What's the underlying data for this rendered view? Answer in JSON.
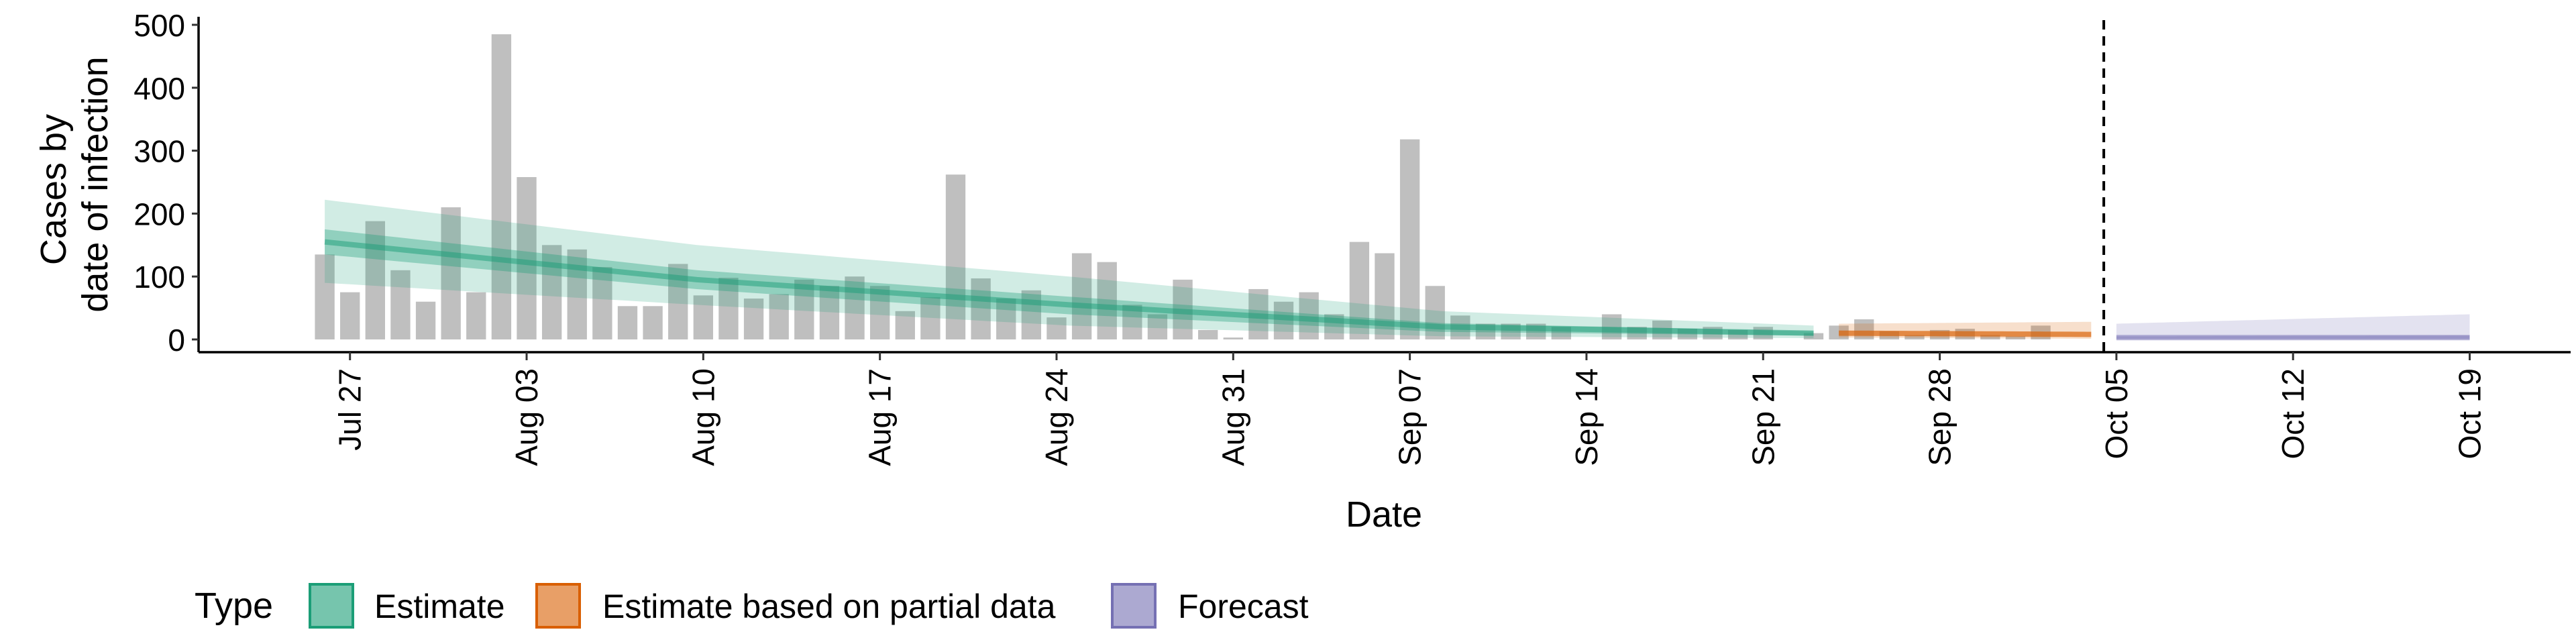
{
  "chart_data": {
    "type": "bar",
    "xlabel": "Date",
    "ylabel_lines": [
      "Cases by",
      "date of infection"
    ],
    "ylim": [
      0,
      500
    ],
    "y_ticks": [
      0,
      100,
      200,
      300,
      400,
      500
    ],
    "x_ticks": [
      {
        "label": "Jul 27",
        "day": 0
      },
      {
        "label": "Aug 03",
        "day": 7
      },
      {
        "label": "Aug 10",
        "day": 14
      },
      {
        "label": "Aug 17",
        "day": 21
      },
      {
        "label": "Aug 24",
        "day": 28
      },
      {
        "label": "Aug 31",
        "day": 35
      },
      {
        "label": "Sep 07",
        "day": 42
      },
      {
        "label": "Sep 14",
        "day": 49
      },
      {
        "label": "Sep 21",
        "day": 56
      },
      {
        "label": "Sep 28",
        "day": 63
      },
      {
        "label": "Oct 05",
        "day": 70
      },
      {
        "label": "Oct 12",
        "day": 77
      },
      {
        "label": "Oct 19",
        "day": 84
      }
    ],
    "x_range_days": [
      -6,
      88
    ],
    "first_bar_date": "Jul 26",
    "reported_cases": [
      135,
      75,
      188,
      110,
      60,
      210,
      75,
      485,
      258,
      150,
      143,
      115,
      53,
      53,
      120,
      70,
      98,
      65,
      72,
      95,
      85,
      100,
      85,
      45,
      67,
      262,
      97,
      65,
      78,
      35,
      137,
      123,
      55,
      40,
      95,
      15,
      3,
      80,
      60,
      75,
      40,
      155,
      137,
      318,
      85,
      38,
      25,
      25,
      25,
      20,
      0,
      40,
      20,
      30,
      17,
      20,
      15,
      20,
      0,
      10,
      22,
      32,
      13,
      7,
      15,
      17,
      7,
      5,
      22
    ],
    "vertical_line_day": 69.5,
    "series": [
      {
        "name": "Estimate",
        "color": "#1b9e77",
        "start_day": -1,
        "end_day": 58,
        "median": [
          155,
          95,
          55,
          20,
          10
        ],
        "inner": [
          [
            135,
            175
          ],
          [
            80,
            110
          ],
          [
            40,
            68
          ],
          [
            12,
            26
          ],
          [
            6,
            13
          ]
        ],
        "outer": [
          [
            90,
            222
          ],
          [
            55,
            150
          ],
          [
            22,
            100
          ],
          [
            5,
            45
          ],
          [
            2,
            22
          ]
        ]
      },
      {
        "name": "Estimate based on partial data",
        "color": "#d95f02",
        "start_day": 59,
        "end_day": 69,
        "median": [
          10,
          8
        ],
        "inner": [
          [
            6,
            14
          ],
          [
            4,
            12
          ]
        ],
        "outer": [
          [
            3,
            25
          ],
          [
            1,
            28
          ]
        ]
      },
      {
        "name": "Forecast",
        "color": "#7570b3",
        "start_day": 70,
        "end_day": 84,
        "median": [
          3,
          3
        ],
        "inner": [
          [
            1,
            5
          ],
          [
            1,
            6
          ]
        ],
        "outer": [
          [
            0,
            25
          ],
          [
            0,
            40
          ]
        ]
      }
    ],
    "legend": {
      "title": "Type",
      "position": "bottom",
      "entries": [
        "Estimate",
        "Estimate based on partial data",
        "Forecast"
      ]
    }
  }
}
